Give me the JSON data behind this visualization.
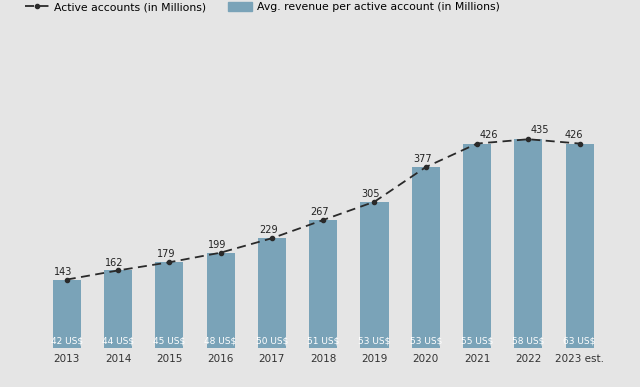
{
  "years": [
    "2013",
    "2014",
    "2015",
    "2016",
    "2017",
    "2018",
    "2019",
    "2020",
    "2021",
    "2022",
    "2023 est."
  ],
  "active_accounts": [
    143,
    162,
    179,
    199,
    229,
    267,
    305,
    377,
    426,
    435,
    426
  ],
  "avg_revenue": [
    42,
    44,
    45,
    48,
    50,
    51,
    53,
    53,
    55,
    58,
    63
  ],
  "bar_color": "#7aa3b8",
  "line_color": "#2a2a2a",
  "bg_color": "#e5e5e5",
  "legend_label_line": "Active accounts (in Millions)",
  "legend_label_bar": "Avg. revenue per active account (in Millions)",
  "ylim_max": 620,
  "bar_width": 0.55
}
